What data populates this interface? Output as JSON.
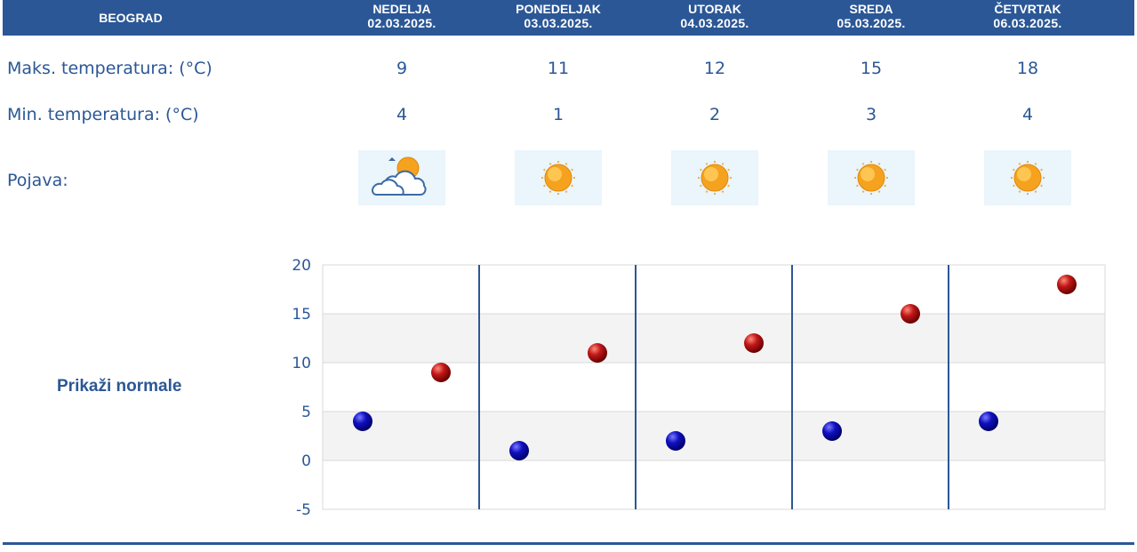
{
  "header": {
    "city": "BEOGRAD",
    "days": [
      {
        "name": "NEDELJA",
        "date": "02.03.2025."
      },
      {
        "name": "PONEDELJAK",
        "date": "03.03.2025."
      },
      {
        "name": "UTORAK",
        "date": "04.03.2025."
      },
      {
        "name": "SREDA",
        "date": "05.03.2025."
      },
      {
        "name": "ČETVRTAK",
        "date": "06.03.2025."
      }
    ]
  },
  "rows": {
    "max_label": "Maks. temperatura: (°C)",
    "min_label": "Min. temperatura: (°C)",
    "phenomenon_label": "Pojava:",
    "max_values": [
      "9",
      "11",
      "12",
      "15",
      "18"
    ],
    "min_values": [
      "4",
      "1",
      "2",
      "3",
      "4"
    ],
    "icons": [
      "partly-cloudy-icon",
      "sun-icon",
      "sun-icon",
      "sun-icon",
      "sun-icon"
    ]
  },
  "show_normals_label": "Prikaži normale",
  "colors": {
    "brand": "#2b5796",
    "min_point": "#1010c0",
    "max_point": "#c01818",
    "icon_bg": "#eaf5fc"
  },
  "chart_data": {
    "type": "scatter",
    "ylim": [
      -5,
      20
    ],
    "y_ticks": [
      "20",
      "15",
      "10",
      "5",
      "0",
      "-5"
    ],
    "categories": [
      "02.03.2025.",
      "03.03.2025.",
      "04.03.2025.",
      "05.03.2025.",
      "06.03.2025."
    ],
    "series": [
      {
        "key": "min",
        "values": [
          4,
          1,
          2,
          3,
          4
        ]
      },
      {
        "key": "max",
        "values": [
          9,
          11,
          12,
          15,
          18
        ]
      }
    ]
  }
}
